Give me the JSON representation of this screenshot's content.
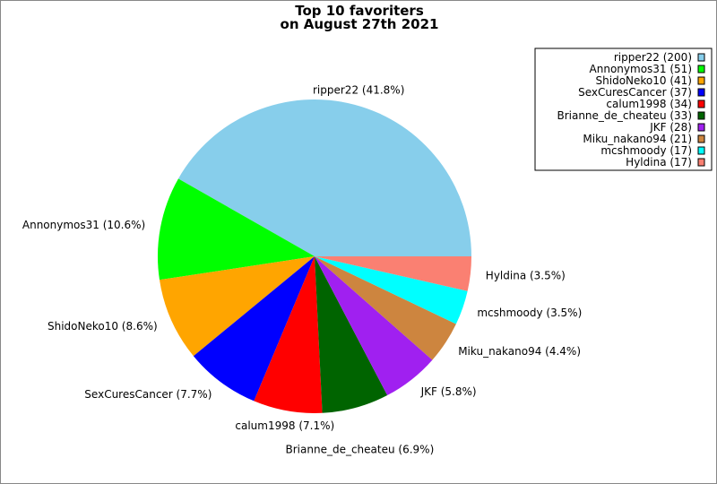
{
  "chart_data": {
    "type": "pie",
    "title_lines": [
      "Top 10 favoriters",
      "on August 27th 2021"
    ],
    "start_angle_deg": 0,
    "direction": "counterclockwise",
    "legend_position": "top-right",
    "slices": [
      {
        "name": "ripper22",
        "value": 200,
        "percent_label": "ripper22 (41.8%)",
        "legend_label": "ripper22 (200)",
        "color": "#87ceeb"
      },
      {
        "name": "Annonymos31",
        "value": 51,
        "percent_label": "Annonymos31 (10.6%)",
        "legend_label": "Annonymos31 (51)",
        "color": "#00ff00"
      },
      {
        "name": "ShidoNeko10",
        "value": 41,
        "percent_label": "ShidoNeko10 (8.6%)",
        "legend_label": "ShidoNeko10 (41)",
        "color": "#ffa500"
      },
      {
        "name": "SexCuresCancer",
        "value": 37,
        "percent_label": "SexCuresCancer (7.7%)",
        "legend_label": "SexCuresCancer (37)",
        "color": "#0000ff"
      },
      {
        "name": "calum1998",
        "value": 34,
        "percent_label": "calum1998 (7.1%)",
        "legend_label": "calum1998 (34)",
        "color": "#ff0000"
      },
      {
        "name": "Brianne_de_cheateu",
        "value": 33,
        "percent_label": "Brianne_de_cheateu (6.9%)",
        "legend_label": "Brianne_de_cheateu (33)",
        "color": "#006400"
      },
      {
        "name": "JKF",
        "value": 28,
        "percent_label": "JKF (5.8%)",
        "legend_label": "JKF (28)",
        "color": "#a020f0"
      },
      {
        "name": "Miku_nakano94",
        "value": 21,
        "percent_label": "Miku_nakano94 (4.4%)",
        "legend_label": "Miku_nakano94 (21)",
        "color": "#cd853f"
      },
      {
        "name": "mcshmoody",
        "value": 17,
        "percent_label": "mcshmoody (3.5%)",
        "legend_label": "mcshmoody (17)",
        "color": "#00ffff"
      },
      {
        "name": "Hyldina",
        "value": 17,
        "percent_label": "Hyldina (3.5%)",
        "legend_label": "Hyldina (17)",
        "color": "#fa8072"
      }
    ]
  }
}
